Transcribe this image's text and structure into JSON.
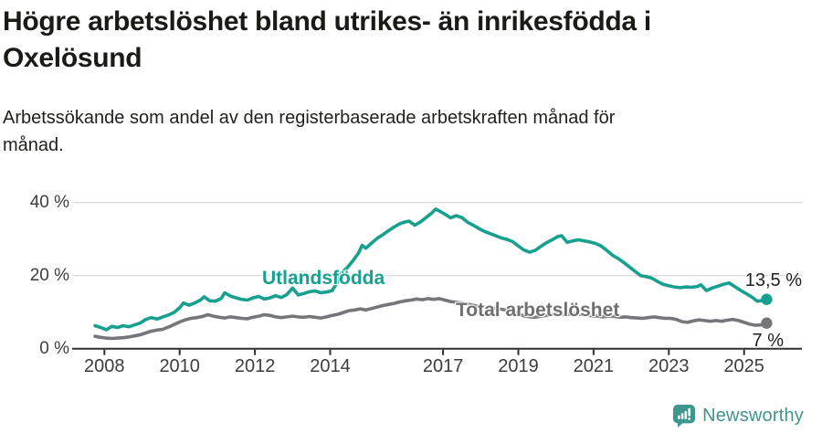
{
  "header": {
    "title_lines": [
      "Högre arbetslöshet bland utrikes- än inrikesfödda i",
      "Oxelösund"
    ],
    "subtitle_lines": [
      "Arbetssökande som andel av den registerbaserade arbetskraften månad för",
      "månad."
    ]
  },
  "chart_data": {
    "type": "line",
    "title": "Högre arbetslöshet bland utrikes- än inrikesfödda i Oxelösund",
    "subtitle": "Arbetssökande som andel av den registerbaserade arbetskraften månad för månad.",
    "xlabel": "",
    "ylabel": "",
    "grid": "horizontal",
    "legend_position": "inline-labels",
    "ylim": [
      0,
      42
    ],
    "xlim": [
      2007.1,
      2026.5
    ],
    "y_ticks": [
      {
        "value": 0,
        "label": "0 %"
      },
      {
        "value": 20,
        "label": "20 %"
      },
      {
        "value": 40,
        "label": "40 %"
      }
    ],
    "x_ticks": [
      {
        "year": 2008,
        "label": "2008"
      },
      {
        "year": 2010,
        "label": "2010"
      },
      {
        "year": 2012,
        "label": "2012"
      },
      {
        "year": 2014,
        "label": "2014"
      },
      {
        "year": 2017,
        "label": "2017"
      },
      {
        "year": 2019,
        "label": "2019"
      },
      {
        "year": 2021,
        "label": "2021"
      },
      {
        "year": 2023,
        "label": "2023"
      },
      {
        "year": 2025,
        "label": "2025"
      }
    ],
    "series": [
      {
        "name": "Utlandsfödda",
        "color": "#17A08F",
        "end_label": "13,5 %",
        "end_value": 13.5,
        "points": [
          [
            2007.75,
            6.3
          ],
          [
            2007.9,
            5.8
          ],
          [
            2008.05,
            5.2
          ],
          [
            2008.2,
            6.1
          ],
          [
            2008.35,
            5.8
          ],
          [
            2008.5,
            6.3
          ],
          [
            2008.65,
            6.0
          ],
          [
            2008.8,
            6.5
          ],
          [
            2008.95,
            7.0
          ],
          [
            2009.1,
            8.0
          ],
          [
            2009.25,
            8.5
          ],
          [
            2009.4,
            8.1
          ],
          [
            2009.55,
            8.7
          ],
          [
            2009.7,
            9.2
          ],
          [
            2009.85,
            9.9
          ],
          [
            2010.0,
            11.2
          ],
          [
            2010.1,
            12.5
          ],
          [
            2010.25,
            11.9
          ],
          [
            2010.4,
            12.5
          ],
          [
            2010.55,
            13.3
          ],
          [
            2010.65,
            14.2
          ],
          [
            2010.8,
            13.1
          ],
          [
            2010.95,
            13.0
          ],
          [
            2011.1,
            13.7
          ],
          [
            2011.2,
            15.3
          ],
          [
            2011.35,
            14.4
          ],
          [
            2011.5,
            13.9
          ],
          [
            2011.65,
            13.5
          ],
          [
            2011.8,
            13.3
          ],
          [
            2011.95,
            13.9
          ],
          [
            2012.1,
            14.3
          ],
          [
            2012.25,
            13.6
          ],
          [
            2012.4,
            13.9
          ],
          [
            2012.55,
            14.5
          ],
          [
            2012.7,
            14.0
          ],
          [
            2012.85,
            14.8
          ],
          [
            2013.0,
            16.6
          ],
          [
            2013.15,
            14.7
          ],
          [
            2013.3,
            15.1
          ],
          [
            2013.45,
            15.6
          ],
          [
            2013.6,
            15.8
          ],
          [
            2013.75,
            15.3
          ],
          [
            2013.9,
            15.5
          ],
          [
            2014.05,
            15.9
          ],
          [
            2014.2,
            18.3
          ],
          [
            2014.3,
            20.9
          ],
          [
            2014.45,
            22.1
          ],
          [
            2014.6,
            24.0
          ],
          [
            2014.75,
            26.1
          ],
          [
            2014.85,
            28.3
          ],
          [
            2014.95,
            27.5
          ],
          [
            2015.1,
            28.9
          ],
          [
            2015.25,
            30.2
          ],
          [
            2015.4,
            31.2
          ],
          [
            2015.55,
            32.3
          ],
          [
            2015.7,
            33.3
          ],
          [
            2015.85,
            34.2
          ],
          [
            2016.0,
            34.7
          ],
          [
            2016.1,
            34.9
          ],
          [
            2016.25,
            33.8
          ],
          [
            2016.4,
            34.7
          ],
          [
            2016.55,
            35.9
          ],
          [
            2016.7,
            37.1
          ],
          [
            2016.8,
            38.2
          ],
          [
            2016.9,
            37.7
          ],
          [
            2017.05,
            36.8
          ],
          [
            2017.2,
            35.8
          ],
          [
            2017.35,
            36.4
          ],
          [
            2017.5,
            35.9
          ],
          [
            2017.65,
            34.6
          ],
          [
            2017.8,
            33.8
          ],
          [
            2017.95,
            32.9
          ],
          [
            2018.1,
            32.1
          ],
          [
            2018.25,
            31.5
          ],
          [
            2018.4,
            30.9
          ],
          [
            2018.55,
            30.3
          ],
          [
            2018.7,
            29.9
          ],
          [
            2018.85,
            29.3
          ],
          [
            2019.0,
            28.1
          ],
          [
            2019.15,
            27.0
          ],
          [
            2019.3,
            26.4
          ],
          [
            2019.45,
            26.9
          ],
          [
            2019.6,
            28.0
          ],
          [
            2019.75,
            29.0
          ],
          [
            2019.9,
            29.8
          ],
          [
            2020.05,
            30.7
          ],
          [
            2020.15,
            30.9
          ],
          [
            2020.3,
            29.1
          ],
          [
            2020.45,
            29.5
          ],
          [
            2020.6,
            29.8
          ],
          [
            2020.75,
            29.5
          ],
          [
            2020.9,
            29.2
          ],
          [
            2021.05,
            28.8
          ],
          [
            2021.2,
            28.1
          ],
          [
            2021.35,
            26.9
          ],
          [
            2021.5,
            25.6
          ],
          [
            2021.65,
            24.7
          ],
          [
            2021.8,
            23.6
          ],
          [
            2021.95,
            22.4
          ],
          [
            2022.1,
            21.2
          ],
          [
            2022.25,
            20.0
          ],
          [
            2022.4,
            19.7
          ],
          [
            2022.55,
            19.3
          ],
          [
            2022.7,
            18.4
          ],
          [
            2022.85,
            17.6
          ],
          [
            2023.0,
            17.2
          ],
          [
            2023.15,
            16.9
          ],
          [
            2023.3,
            16.7
          ],
          [
            2023.45,
            16.9
          ],
          [
            2023.6,
            16.8
          ],
          [
            2023.75,
            17.0
          ],
          [
            2023.85,
            17.5
          ],
          [
            2024.0,
            15.9
          ],
          [
            2024.15,
            16.6
          ],
          [
            2024.3,
            17.1
          ],
          [
            2024.45,
            17.6
          ],
          [
            2024.6,
            18.0
          ],
          [
            2024.75,
            17.0
          ],
          [
            2024.9,
            16.0
          ],
          [
            2025.05,
            15.1
          ],
          [
            2025.2,
            14.2
          ],
          [
            2025.35,
            13.0
          ],
          [
            2025.5,
            13.2
          ],
          [
            2025.6,
            13.5
          ]
        ]
      },
      {
        "name": "Total arbetslöshet",
        "color": "#76757A",
        "end_label": "7 %",
        "end_value": 7.0,
        "points": [
          [
            2007.75,
            3.4
          ],
          [
            2007.9,
            3.1
          ],
          [
            2008.05,
            2.9
          ],
          [
            2008.2,
            2.8
          ],
          [
            2008.35,
            2.9
          ],
          [
            2008.5,
            3.0
          ],
          [
            2008.65,
            3.2
          ],
          [
            2008.8,
            3.5
          ],
          [
            2008.95,
            3.8
          ],
          [
            2009.1,
            4.3
          ],
          [
            2009.25,
            4.8
          ],
          [
            2009.4,
            5.1
          ],
          [
            2009.55,
            5.3
          ],
          [
            2009.7,
            5.9
          ],
          [
            2009.85,
            6.6
          ],
          [
            2010.0,
            7.3
          ],
          [
            2010.15,
            7.9
          ],
          [
            2010.3,
            8.3
          ],
          [
            2010.45,
            8.5
          ],
          [
            2010.6,
            8.8
          ],
          [
            2010.75,
            9.3
          ],
          [
            2010.9,
            8.9
          ],
          [
            2011.05,
            8.6
          ],
          [
            2011.2,
            8.4
          ],
          [
            2011.35,
            8.7
          ],
          [
            2011.5,
            8.5
          ],
          [
            2011.65,
            8.3
          ],
          [
            2011.8,
            8.2
          ],
          [
            2011.95,
            8.6
          ],
          [
            2012.1,
            8.9
          ],
          [
            2012.25,
            9.3
          ],
          [
            2012.4,
            9.1
          ],
          [
            2012.55,
            8.7
          ],
          [
            2012.7,
            8.5
          ],
          [
            2012.85,
            8.7
          ],
          [
            2013.0,
            8.9
          ],
          [
            2013.15,
            8.7
          ],
          [
            2013.3,
            8.6
          ],
          [
            2013.45,
            8.8
          ],
          [
            2013.6,
            8.6
          ],
          [
            2013.75,
            8.4
          ],
          [
            2013.9,
            8.7
          ],
          [
            2014.05,
            9.1
          ],
          [
            2014.2,
            9.4
          ],
          [
            2014.35,
            9.9
          ],
          [
            2014.5,
            10.4
          ],
          [
            2014.65,
            10.6
          ],
          [
            2014.8,
            10.9
          ],
          [
            2014.95,
            10.6
          ],
          [
            2015.1,
            11.0
          ],
          [
            2015.25,
            11.4
          ],
          [
            2015.4,
            11.8
          ],
          [
            2015.55,
            12.1
          ],
          [
            2015.7,
            12.4
          ],
          [
            2015.85,
            12.8
          ],
          [
            2016.0,
            13.1
          ],
          [
            2016.15,
            13.3
          ],
          [
            2016.3,
            13.6
          ],
          [
            2016.45,
            13.4
          ],
          [
            2016.6,
            13.7
          ],
          [
            2016.75,
            13.5
          ],
          [
            2016.9,
            13.7
          ],
          [
            2017.05,
            13.3
          ],
          [
            2017.2,
            12.9
          ],
          [
            2017.35,
            12.7
          ],
          [
            2017.5,
            12.5
          ],
          [
            2017.65,
            12.2
          ],
          [
            2017.8,
            11.9
          ],
          [
            2017.95,
            11.6
          ],
          [
            2018.1,
            11.4
          ],
          [
            2018.25,
            11.2
          ],
          [
            2018.4,
            11.0
          ],
          [
            2018.55,
            10.8
          ],
          [
            2018.7,
            10.5
          ],
          [
            2018.85,
            10.1
          ],
          [
            2019.0,
            9.5
          ],
          [
            2019.15,
            9.0
          ],
          [
            2019.3,
            8.7
          ],
          [
            2019.45,
            8.6
          ],
          [
            2019.6,
            8.9
          ],
          [
            2019.75,
            9.1
          ],
          [
            2019.9,
            9.4
          ],
          [
            2020.05,
            9.6
          ],
          [
            2020.2,
            9.3
          ],
          [
            2020.35,
            9.4
          ],
          [
            2020.5,
            9.6
          ],
          [
            2020.65,
            9.4
          ],
          [
            2020.8,
            9.2
          ],
          [
            2020.95,
            9.0
          ],
          [
            2021.1,
            8.9
          ],
          [
            2021.25,
            8.7
          ],
          [
            2021.4,
            8.9
          ],
          [
            2021.55,
            8.8
          ],
          [
            2021.7,
            8.6
          ],
          [
            2021.85,
            8.7
          ],
          [
            2022.0,
            8.5
          ],
          [
            2022.15,
            8.4
          ],
          [
            2022.3,
            8.3
          ],
          [
            2022.45,
            8.5
          ],
          [
            2022.6,
            8.7
          ],
          [
            2022.75,
            8.5
          ],
          [
            2022.9,
            8.3
          ],
          [
            2023.05,
            8.3
          ],
          [
            2023.2,
            8.0
          ],
          [
            2023.35,
            7.4
          ],
          [
            2023.5,
            7.2
          ],
          [
            2023.65,
            7.6
          ],
          [
            2023.8,
            7.9
          ],
          [
            2023.95,
            7.7
          ],
          [
            2024.1,
            7.5
          ],
          [
            2024.25,
            7.7
          ],
          [
            2024.4,
            7.5
          ],
          [
            2024.55,
            7.8
          ],
          [
            2024.7,
            8.0
          ],
          [
            2024.85,
            7.7
          ],
          [
            2025.0,
            7.2
          ],
          [
            2025.15,
            6.7
          ],
          [
            2025.3,
            6.4
          ],
          [
            2025.45,
            6.5
          ],
          [
            2025.6,
            7.0
          ]
        ]
      }
    ],
    "axis_colors": {
      "gridline": "#dbdbdb",
      "baseline": "#2f2f2f",
      "tick_text": "#3d3d3d"
    }
  },
  "footer": {
    "brand": "Newsworthy",
    "brand_color": "#3F968D"
  }
}
